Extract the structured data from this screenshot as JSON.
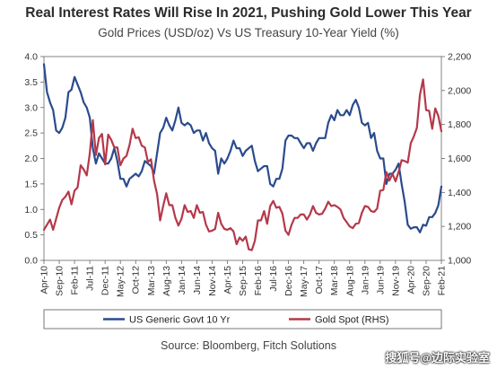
{
  "header": {
    "title": "Real Interest Rates Will Rise In 2021, Pushing Gold Lower This Year",
    "subtitle": "Gold Prices (USD/oz) Vs US Treasury 10-Year Yield (%)"
  },
  "footer": {
    "source": "Source: Bloomberg, Fitch Solutions",
    "watermark": "搜狐号@边际实验室"
  },
  "chart_data": {
    "type": "line",
    "title": "Real Interest Rates Will Rise In 2021, Pushing Gold Lower This Year",
    "subtitle": "Gold Prices (USD/oz) Vs US Treasury 10-Year Yield (%)",
    "x_start": "2010-04",
    "x_end": "2021-02",
    "x_tick_labels": [
      "Apr-10",
      "Sep-10",
      "Feb-11",
      "Jul-11",
      "Dec-11",
      "May-12",
      "Oct-12",
      "Mar-13",
      "Aug-13",
      "Jan-14",
      "Jun-14",
      "Nov-14",
      "Apr-15",
      "Sep-15",
      "Feb-16",
      "Jul-16",
      "Dec-16",
      "May-17",
      "Oct-17",
      "Mar-18",
      "Aug-18",
      "Jan-19",
      "Jun-19",
      "Nov-19",
      "Apr-20",
      "Sep-20",
      "Feb-21"
    ],
    "y_left": {
      "min": 0.0,
      "max": 4.0,
      "ticks": [
        "0.0",
        "0.5",
        "1.0",
        "1.5",
        "2.0",
        "2.5",
        "3.0",
        "3.5",
        "4.0"
      ]
    },
    "y_right": {
      "min": 1000,
      "max": 2200,
      "ticks": [
        "1,000",
        "1,200",
        "1,400",
        "1,600",
        "1,800",
        "2,000",
        "2,200"
      ]
    },
    "grid": false,
    "legend_position": "bottom",
    "series": [
      {
        "name": "US Generic Govt 10 Yr",
        "axis": "left",
        "color": "#2a4b8d",
        "points": [
          [
            "2010-04",
            3.85
          ],
          [
            "2010-05",
            3.3
          ],
          [
            "2010-06",
            3.1
          ],
          [
            "2010-07",
            2.95
          ],
          [
            "2010-08",
            2.55
          ],
          [
            "2010-09",
            2.5
          ],
          [
            "2010-10",
            2.6
          ],
          [
            "2010-11",
            2.8
          ],
          [
            "2010-12",
            3.3
          ],
          [
            "2011-01",
            3.35
          ],
          [
            "2011-02",
            3.6
          ],
          [
            "2011-03",
            3.45
          ],
          [
            "2011-04",
            3.3
          ],
          [
            "2011-05",
            3.1
          ],
          [
            "2011-06",
            3.0
          ],
          [
            "2011-07",
            2.8
          ],
          [
            "2011-08",
            2.2
          ],
          [
            "2011-09",
            1.9
          ],
          [
            "2011-10",
            2.1
          ],
          [
            "2011-11",
            2.0
          ],
          [
            "2011-12",
            1.9
          ],
          [
            "2012-01",
            1.9
          ],
          [
            "2012-02",
            2.0
          ],
          [
            "2012-03",
            2.2
          ],
          [
            "2012-04",
            1.95
          ],
          [
            "2012-05",
            1.6
          ],
          [
            "2012-06",
            1.6
          ],
          [
            "2012-07",
            1.45
          ],
          [
            "2012-08",
            1.6
          ],
          [
            "2012-09",
            1.65
          ],
          [
            "2012-10",
            1.7
          ],
          [
            "2012-11",
            1.65
          ],
          [
            "2012-12",
            1.75
          ],
          [
            "2013-01",
            1.95
          ],
          [
            "2013-02",
            1.9
          ],
          [
            "2013-03",
            1.85
          ],
          [
            "2013-04",
            1.7
          ],
          [
            "2013-05",
            2.1
          ],
          [
            "2013-06",
            2.5
          ],
          [
            "2013-07",
            2.6
          ],
          [
            "2013-08",
            2.8
          ],
          [
            "2013-09",
            2.65
          ],
          [
            "2013-10",
            2.55
          ],
          [
            "2013-11",
            2.75
          ],
          [
            "2013-12",
            3.0
          ],
          [
            "2014-01",
            2.7
          ],
          [
            "2014-02",
            2.65
          ],
          [
            "2014-03",
            2.7
          ],
          [
            "2014-04",
            2.65
          ],
          [
            "2014-05",
            2.5
          ],
          [
            "2014-06",
            2.55
          ],
          [
            "2014-07",
            2.55
          ],
          [
            "2014-08",
            2.35
          ],
          [
            "2014-09",
            2.5
          ],
          [
            "2014-10",
            2.3
          ],
          [
            "2014-11",
            2.2
          ],
          [
            "2014-12",
            2.15
          ],
          [
            "2015-01",
            1.7
          ],
          [
            "2015-02",
            2.0
          ],
          [
            "2015-03",
            1.9
          ],
          [
            "2015-04",
            2.0
          ],
          [
            "2015-05",
            2.15
          ],
          [
            "2015-06",
            2.35
          ],
          [
            "2015-07",
            2.2
          ],
          [
            "2015-08",
            2.2
          ],
          [
            "2015-09",
            2.05
          ],
          [
            "2015-10",
            2.15
          ],
          [
            "2015-11",
            2.2
          ],
          [
            "2015-12",
            2.25
          ],
          [
            "2016-01",
            1.95
          ],
          [
            "2016-02",
            1.75
          ],
          [
            "2016-03",
            1.8
          ],
          [
            "2016-04",
            1.85
          ],
          [
            "2016-05",
            1.85
          ],
          [
            "2016-06",
            1.5
          ],
          [
            "2016-07",
            1.45
          ],
          [
            "2016-08",
            1.6
          ],
          [
            "2016-09",
            1.6
          ],
          [
            "2016-10",
            1.8
          ],
          [
            "2016-11",
            2.35
          ],
          [
            "2016-12",
            2.45
          ],
          [
            "2017-01",
            2.45
          ],
          [
            "2017-02",
            2.4
          ],
          [
            "2017-03",
            2.4
          ],
          [
            "2017-04",
            2.3
          ],
          [
            "2017-05",
            2.2
          ],
          [
            "2017-06",
            2.3
          ],
          [
            "2017-07",
            2.3
          ],
          [
            "2017-08",
            2.15
          ],
          [
            "2017-09",
            2.3
          ],
          [
            "2017-10",
            2.4
          ],
          [
            "2017-11",
            2.4
          ],
          [
            "2017-12",
            2.4
          ],
          [
            "2018-01",
            2.7
          ],
          [
            "2018-02",
            2.85
          ],
          [
            "2018-03",
            2.75
          ],
          [
            "2018-04",
            2.95
          ],
          [
            "2018-05",
            2.85
          ],
          [
            "2018-06",
            2.85
          ],
          [
            "2018-07",
            2.95
          ],
          [
            "2018-08",
            2.85
          ],
          [
            "2018-09",
            3.05
          ],
          [
            "2018-10",
            3.15
          ],
          [
            "2018-11",
            3.0
          ],
          [
            "2018-12",
            2.7
          ],
          [
            "2019-01",
            2.65
          ],
          [
            "2019-02",
            2.7
          ],
          [
            "2019-03",
            2.4
          ],
          [
            "2019-04",
            2.5
          ],
          [
            "2019-05",
            2.15
          ],
          [
            "2019-06",
            2.0
          ],
          [
            "2019-07",
            2.0
          ],
          [
            "2019-08",
            1.5
          ],
          [
            "2019-09",
            1.7
          ],
          [
            "2019-10",
            1.7
          ],
          [
            "2019-11",
            1.78
          ],
          [
            "2019-12",
            1.9
          ],
          [
            "2020-01",
            1.5
          ],
          [
            "2020-02",
            1.15
          ],
          [
            "2020-03",
            0.7
          ],
          [
            "2020-04",
            0.62
          ],
          [
            "2020-05",
            0.65
          ],
          [
            "2020-06",
            0.65
          ],
          [
            "2020-07",
            0.55
          ],
          [
            "2020-08",
            0.7
          ],
          [
            "2020-09",
            0.68
          ],
          [
            "2020-10",
            0.85
          ],
          [
            "2020-11",
            0.85
          ],
          [
            "2020-12",
            0.93
          ],
          [
            "2021-01",
            1.08
          ],
          [
            "2021-02",
            1.45
          ]
        ]
      },
      {
        "name": "Gold Spot (RHS)",
        "axis": "right",
        "color": "#b5384a",
        "points": [
          [
            "2010-04",
            1180
          ],
          [
            "2010-05",
            1210
          ],
          [
            "2010-06",
            1240
          ],
          [
            "2010-07",
            1180
          ],
          [
            "2010-08",
            1245
          ],
          [
            "2010-09",
            1310
          ],
          [
            "2010-10",
            1355
          ],
          [
            "2010-11",
            1375
          ],
          [
            "2010-12",
            1405
          ],
          [
            "2011-01",
            1330
          ],
          [
            "2011-02",
            1410
          ],
          [
            "2011-03",
            1430
          ],
          [
            "2011-04",
            1560
          ],
          [
            "2011-05",
            1535
          ],
          [
            "2011-06",
            1500
          ],
          [
            "2011-07",
            1630
          ],
          [
            "2011-08",
            1825
          ],
          [
            "2011-09",
            1620
          ],
          [
            "2011-10",
            1720
          ],
          [
            "2011-11",
            1745
          ],
          [
            "2011-12",
            1565
          ],
          [
            "2012-01",
            1740
          ],
          [
            "2012-02",
            1710
          ],
          [
            "2012-03",
            1665
          ],
          [
            "2012-04",
            1665
          ],
          [
            "2012-05",
            1560
          ],
          [
            "2012-06",
            1600
          ],
          [
            "2012-07",
            1615
          ],
          [
            "2012-08",
            1680
          ],
          [
            "2012-09",
            1775
          ],
          [
            "2012-10",
            1720
          ],
          [
            "2012-11",
            1725
          ],
          [
            "2012-12",
            1675
          ],
          [
            "2013-01",
            1665
          ],
          [
            "2013-02",
            1580
          ],
          [
            "2013-03",
            1595
          ],
          [
            "2013-04",
            1470
          ],
          [
            "2013-05",
            1390
          ],
          [
            "2013-06",
            1235
          ],
          [
            "2013-07",
            1320
          ],
          [
            "2013-08",
            1395
          ],
          [
            "2013-09",
            1325
          ],
          [
            "2013-10",
            1325
          ],
          [
            "2013-11",
            1250
          ],
          [
            "2013-12",
            1205
          ],
          [
            "2014-01",
            1245
          ],
          [
            "2014-02",
            1325
          ],
          [
            "2014-03",
            1285
          ],
          [
            "2014-04",
            1290
          ],
          [
            "2014-05",
            1250
          ],
          [
            "2014-06",
            1325
          ],
          [
            "2014-07",
            1280
          ],
          [
            "2014-08",
            1285
          ],
          [
            "2014-09",
            1210
          ],
          [
            "2014-10",
            1170
          ],
          [
            "2014-11",
            1175
          ],
          [
            "2014-12",
            1185
          ],
          [
            "2015-01",
            1280
          ],
          [
            "2015-02",
            1215
          ],
          [
            "2015-03",
            1185
          ],
          [
            "2015-04",
            1180
          ],
          [
            "2015-05",
            1190
          ],
          [
            "2015-06",
            1170
          ],
          [
            "2015-07",
            1095
          ],
          [
            "2015-08",
            1135
          ],
          [
            "2015-09",
            1115
          ],
          [
            "2015-10",
            1140
          ],
          [
            "2015-11",
            1065
          ],
          [
            "2015-12",
            1060
          ],
          [
            "2016-01",
            1115
          ],
          [
            "2016-02",
            1235
          ],
          [
            "2016-03",
            1235
          ],
          [
            "2016-04",
            1290
          ],
          [
            "2016-05",
            1215
          ],
          [
            "2016-06",
            1320
          ],
          [
            "2016-07",
            1350
          ],
          [
            "2016-08",
            1310
          ],
          [
            "2016-09",
            1315
          ],
          [
            "2016-10",
            1275
          ],
          [
            "2016-11",
            1175
          ],
          [
            "2016-12",
            1150
          ],
          [
            "2017-01",
            1210
          ],
          [
            "2017-02",
            1250
          ],
          [
            "2017-03",
            1250
          ],
          [
            "2017-04",
            1270
          ],
          [
            "2017-05",
            1270
          ],
          [
            "2017-06",
            1240
          ],
          [
            "2017-07",
            1270
          ],
          [
            "2017-08",
            1320
          ],
          [
            "2017-09",
            1280
          ],
          [
            "2017-10",
            1270
          ],
          [
            "2017-11",
            1275
          ],
          [
            "2017-12",
            1305
          ],
          [
            "2018-01",
            1345
          ],
          [
            "2018-02",
            1320
          ],
          [
            "2018-03",
            1325
          ],
          [
            "2018-04",
            1315
          ],
          [
            "2018-05",
            1300
          ],
          [
            "2018-06",
            1250
          ],
          [
            "2018-07",
            1225
          ],
          [
            "2018-08",
            1200
          ],
          [
            "2018-09",
            1190
          ],
          [
            "2018-10",
            1215
          ],
          [
            "2018-11",
            1220
          ],
          [
            "2018-12",
            1280
          ],
          [
            "2019-01",
            1320
          ],
          [
            "2019-02",
            1315
          ],
          [
            "2019-03",
            1290
          ],
          [
            "2019-04",
            1285
          ],
          [
            "2019-05",
            1305
          ],
          [
            "2019-06",
            1410
          ],
          [
            "2019-07",
            1415
          ],
          [
            "2019-08",
            1520
          ],
          [
            "2019-09",
            1470
          ],
          [
            "2019-10",
            1510
          ],
          [
            "2019-11",
            1465
          ],
          [
            "2019-12",
            1520
          ],
          [
            "2020-01",
            1590
          ],
          [
            "2020-02",
            1585
          ],
          [
            "2020-03",
            1575
          ],
          [
            "2020-04",
            1690
          ],
          [
            "2020-05",
            1730
          ],
          [
            "2020-06",
            1780
          ],
          [
            "2020-07",
            1975
          ],
          [
            "2020-08",
            2065
          ],
          [
            "2020-09",
            1885
          ],
          [
            "2020-10",
            1880
          ],
          [
            "2020-11",
            1775
          ],
          [
            "2020-12",
            1895
          ],
          [
            "2021-01",
            1850
          ],
          [
            "2021-02",
            1760
          ]
        ]
      }
    ]
  }
}
